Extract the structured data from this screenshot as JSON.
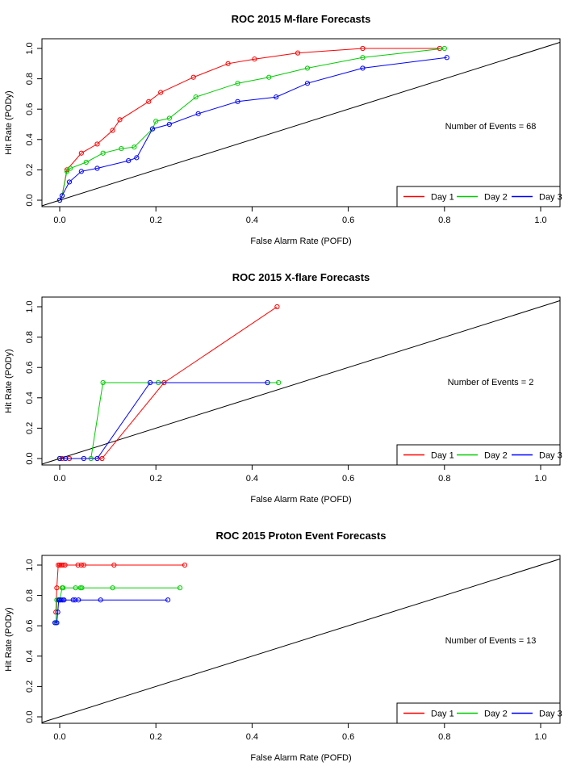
{
  "chart_data": [
    {
      "type": "line",
      "title": "ROC  2015 M-flare Forecasts",
      "xlabel": "False Alarm Rate (POFD)",
      "ylabel": "Hit Rate (PODy)",
      "xlim": [
        0,
        1
      ],
      "ylim": [
        0,
        1
      ],
      "xticks": [
        "0.0",
        "0.2",
        "0.4",
        "0.6",
        "0.8",
        "1.0"
      ],
      "yticks": [
        "0.0",
        "0.2",
        "0.4",
        "0.6",
        "0.8",
        "1.0"
      ],
      "annotation": "Number of Events =  68",
      "legend_position": "bottom-right",
      "series": [
        {
          "name": "Day 1",
          "color": "#ff0000",
          "points": [
            [
              0.0,
              0.0
            ],
            [
              0.005,
              0.03
            ],
            [
              0.015,
              0.2
            ],
            [
              0.045,
              0.31
            ],
            [
              0.078,
              0.37
            ],
            [
              0.11,
              0.46
            ],
            [
              0.125,
              0.53
            ],
            [
              0.185,
              0.65
            ],
            [
              0.21,
              0.71
            ],
            [
              0.278,
              0.81
            ],
            [
              0.35,
              0.9
            ],
            [
              0.405,
              0.93
            ],
            [
              0.495,
              0.97
            ],
            [
              0.63,
              1.0
            ],
            [
              0.79,
              1.0
            ]
          ]
        },
        {
          "name": "Day 2",
          "color": "#00cc00",
          "points": [
            [
              0.0,
              0.0
            ],
            [
              0.005,
              0.03
            ],
            [
              0.015,
              0.19
            ],
            [
              0.022,
              0.21
            ],
            [
              0.055,
              0.25
            ],
            [
              0.09,
              0.31
            ],
            [
              0.128,
              0.34
            ],
            [
              0.155,
              0.35
            ],
            [
              0.193,
              0.47
            ],
            [
              0.2,
              0.52
            ],
            [
              0.228,
              0.54
            ],
            [
              0.283,
              0.68
            ],
            [
              0.37,
              0.77
            ],
            [
              0.435,
              0.81
            ],
            [
              0.515,
              0.87
            ],
            [
              0.63,
              0.94
            ],
            [
              0.8,
              1.0
            ]
          ]
        },
        {
          "name": "Day 3",
          "color": "#0000ff",
          "points": [
            [
              0.0,
              0.0
            ],
            [
              0.005,
              0.03
            ],
            [
              0.02,
              0.12
            ],
            [
              0.045,
              0.19
            ],
            [
              0.078,
              0.21
            ],
            [
              0.143,
              0.26
            ],
            [
              0.16,
              0.28
            ],
            [
              0.193,
              0.47
            ],
            [
              0.228,
              0.5
            ],
            [
              0.288,
              0.57
            ],
            [
              0.37,
              0.65
            ],
            [
              0.45,
              0.68
            ],
            [
              0.515,
              0.77
            ],
            [
              0.63,
              0.87
            ],
            [
              0.805,
              0.94
            ]
          ]
        }
      ]
    },
    {
      "type": "line",
      "title": "ROC  2015 X-flare Forecasts",
      "xlabel": "False Alarm Rate (POFD)",
      "ylabel": "Hit Rate (PODy)",
      "xlim": [
        0,
        1
      ],
      "ylim": [
        0,
        1
      ],
      "xticks": [
        "0.0",
        "0.2",
        "0.4",
        "0.6",
        "0.8",
        "1.0"
      ],
      "yticks": [
        "0.0",
        "0.2",
        "0.4",
        "0.6",
        "0.8",
        "1.0"
      ],
      "annotation": "Number of Events =  2",
      "legend_position": "bottom-right",
      "series": [
        {
          "name": "Day 1",
          "color": "#ff0000",
          "points": [
            [
              0.0,
              0.0
            ],
            [
              0.005,
              0.0
            ],
            [
              0.02,
              0.0
            ],
            [
              0.088,
              0.0
            ],
            [
              0.217,
              0.5
            ],
            [
              0.452,
              1.0
            ]
          ]
        },
        {
          "name": "Day 2",
          "color": "#00cc00",
          "points": [
            [
              0.0,
              0.0
            ],
            [
              0.065,
              0.0
            ],
            [
              0.09,
              0.5
            ],
            [
              0.205,
              0.5
            ],
            [
              0.455,
              0.5
            ]
          ]
        },
        {
          "name": "Day 3",
          "color": "#0000ff",
          "points": [
            [
              0.0,
              0.0
            ],
            [
              0.012,
              0.0
            ],
            [
              0.05,
              0.0
            ],
            [
              0.078,
              0.0
            ],
            [
              0.188,
              0.5
            ],
            [
              0.432,
              0.5
            ]
          ]
        }
      ]
    },
    {
      "type": "line",
      "title": "ROC  2015 Proton Event Forecasts",
      "xlabel": "False Alarm Rate (POFD)",
      "ylabel": "Hit Rate (PODy)",
      "xlim": [
        0,
        1
      ],
      "ylim": [
        0,
        1
      ],
      "xticks": [
        "0.0",
        "0.2",
        "0.4",
        "0.6",
        "0.8",
        "1.0"
      ],
      "yticks": [
        "0.0",
        "0.2",
        "0.4",
        "0.6",
        "0.8",
        "1.0"
      ],
      "annotation": "Number of Events =  13",
      "legend_position": "bottom-right",
      "series": [
        {
          "name": "Day 1",
          "color": "#ff0000",
          "points": [
            [
              -0.008,
              0.69
            ],
            [
              -0.006,
              0.85
            ],
            [
              -0.003,
              1.0
            ],
            [
              0.0,
              1.0
            ],
            [
              0.003,
              1.0
            ],
            [
              0.007,
              1.0
            ],
            [
              0.011,
              1.0
            ],
            [
              0.038,
              1.0
            ],
            [
              0.045,
              1.0
            ],
            [
              0.05,
              1.0
            ],
            [
              0.113,
              1.0
            ],
            [
              0.26,
              1.0
            ]
          ]
        },
        {
          "name": "Day 2",
          "color": "#00cc00",
          "points": [
            [
              -0.008,
              0.62
            ],
            [
              -0.006,
              0.77
            ],
            [
              -0.003,
              0.77
            ],
            [
              0.0,
              0.77
            ],
            [
              0.005,
              0.85
            ],
            [
              0.007,
              0.85
            ],
            [
              0.033,
              0.85
            ],
            [
              0.043,
              0.85
            ],
            [
              0.046,
              0.85
            ],
            [
              0.11,
              0.85
            ],
            [
              0.25,
              0.85
            ]
          ]
        },
        {
          "name": "Day 3",
          "color": "#0000ff",
          "points": [
            [
              -0.01,
              0.62
            ],
            [
              -0.006,
              0.62
            ],
            [
              -0.004,
              0.69
            ],
            [
              -0.002,
              0.77
            ],
            [
              0.0,
              0.77
            ],
            [
              0.003,
              0.77
            ],
            [
              0.006,
              0.77
            ],
            [
              0.009,
              0.77
            ],
            [
              0.028,
              0.77
            ],
            [
              0.032,
              0.77
            ],
            [
              0.039,
              0.77
            ],
            [
              0.085,
              0.77
            ],
            [
              0.225,
              0.77
            ]
          ]
        }
      ]
    }
  ]
}
